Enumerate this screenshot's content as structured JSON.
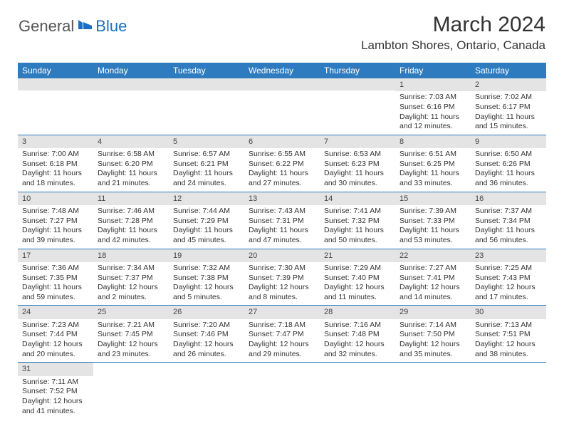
{
  "logo": {
    "text1": "General",
    "text2": "Blue"
  },
  "title": "March 2024",
  "location": "Lambton Shores, Ontario, Canada",
  "header_bg": "#2f7bbf",
  "header_fg": "#ffffff",
  "daynum_bg": "#e4e4e4",
  "days": [
    "Sunday",
    "Monday",
    "Tuesday",
    "Wednesday",
    "Thursday",
    "Friday",
    "Saturday"
  ],
  "weeks": [
    [
      {
        "empty": true
      },
      {
        "empty": true
      },
      {
        "empty": true
      },
      {
        "empty": true
      },
      {
        "empty": true
      },
      {
        "n": "1",
        "sr": "Sunrise: 7:03 AM",
        "ss": "Sunset: 6:16 PM",
        "d1": "Daylight: 11 hours",
        "d2": "and 12 minutes."
      },
      {
        "n": "2",
        "sr": "Sunrise: 7:02 AM",
        "ss": "Sunset: 6:17 PM",
        "d1": "Daylight: 11 hours",
        "d2": "and 15 minutes."
      }
    ],
    [
      {
        "n": "3",
        "sr": "Sunrise: 7:00 AM",
        "ss": "Sunset: 6:18 PM",
        "d1": "Daylight: 11 hours",
        "d2": "and 18 minutes."
      },
      {
        "n": "4",
        "sr": "Sunrise: 6:58 AM",
        "ss": "Sunset: 6:20 PM",
        "d1": "Daylight: 11 hours",
        "d2": "and 21 minutes."
      },
      {
        "n": "5",
        "sr": "Sunrise: 6:57 AM",
        "ss": "Sunset: 6:21 PM",
        "d1": "Daylight: 11 hours",
        "d2": "and 24 minutes."
      },
      {
        "n": "6",
        "sr": "Sunrise: 6:55 AM",
        "ss": "Sunset: 6:22 PM",
        "d1": "Daylight: 11 hours",
        "d2": "and 27 minutes."
      },
      {
        "n": "7",
        "sr": "Sunrise: 6:53 AM",
        "ss": "Sunset: 6:23 PM",
        "d1": "Daylight: 11 hours",
        "d2": "and 30 minutes."
      },
      {
        "n": "8",
        "sr": "Sunrise: 6:51 AM",
        "ss": "Sunset: 6:25 PM",
        "d1": "Daylight: 11 hours",
        "d2": "and 33 minutes."
      },
      {
        "n": "9",
        "sr": "Sunrise: 6:50 AM",
        "ss": "Sunset: 6:26 PM",
        "d1": "Daylight: 11 hours",
        "d2": "and 36 minutes."
      }
    ],
    [
      {
        "n": "10",
        "sr": "Sunrise: 7:48 AM",
        "ss": "Sunset: 7:27 PM",
        "d1": "Daylight: 11 hours",
        "d2": "and 39 minutes."
      },
      {
        "n": "11",
        "sr": "Sunrise: 7:46 AM",
        "ss": "Sunset: 7:28 PM",
        "d1": "Daylight: 11 hours",
        "d2": "and 42 minutes."
      },
      {
        "n": "12",
        "sr": "Sunrise: 7:44 AM",
        "ss": "Sunset: 7:29 PM",
        "d1": "Daylight: 11 hours",
        "d2": "and 45 minutes."
      },
      {
        "n": "13",
        "sr": "Sunrise: 7:43 AM",
        "ss": "Sunset: 7:31 PM",
        "d1": "Daylight: 11 hours",
        "d2": "and 47 minutes."
      },
      {
        "n": "14",
        "sr": "Sunrise: 7:41 AM",
        "ss": "Sunset: 7:32 PM",
        "d1": "Daylight: 11 hours",
        "d2": "and 50 minutes."
      },
      {
        "n": "15",
        "sr": "Sunrise: 7:39 AM",
        "ss": "Sunset: 7:33 PM",
        "d1": "Daylight: 11 hours",
        "d2": "and 53 minutes."
      },
      {
        "n": "16",
        "sr": "Sunrise: 7:37 AM",
        "ss": "Sunset: 7:34 PM",
        "d1": "Daylight: 11 hours",
        "d2": "and 56 minutes."
      }
    ],
    [
      {
        "n": "17",
        "sr": "Sunrise: 7:36 AM",
        "ss": "Sunset: 7:35 PM",
        "d1": "Daylight: 11 hours",
        "d2": "and 59 minutes."
      },
      {
        "n": "18",
        "sr": "Sunrise: 7:34 AM",
        "ss": "Sunset: 7:37 PM",
        "d1": "Daylight: 12 hours",
        "d2": "and 2 minutes."
      },
      {
        "n": "19",
        "sr": "Sunrise: 7:32 AM",
        "ss": "Sunset: 7:38 PM",
        "d1": "Daylight: 12 hours",
        "d2": "and 5 minutes."
      },
      {
        "n": "20",
        "sr": "Sunrise: 7:30 AM",
        "ss": "Sunset: 7:39 PM",
        "d1": "Daylight: 12 hours",
        "d2": "and 8 minutes."
      },
      {
        "n": "21",
        "sr": "Sunrise: 7:29 AM",
        "ss": "Sunset: 7:40 PM",
        "d1": "Daylight: 12 hours",
        "d2": "and 11 minutes."
      },
      {
        "n": "22",
        "sr": "Sunrise: 7:27 AM",
        "ss": "Sunset: 7:41 PM",
        "d1": "Daylight: 12 hours",
        "d2": "and 14 minutes."
      },
      {
        "n": "23",
        "sr": "Sunrise: 7:25 AM",
        "ss": "Sunset: 7:43 PM",
        "d1": "Daylight: 12 hours",
        "d2": "and 17 minutes."
      }
    ],
    [
      {
        "n": "24",
        "sr": "Sunrise: 7:23 AM",
        "ss": "Sunset: 7:44 PM",
        "d1": "Daylight: 12 hours",
        "d2": "and 20 minutes."
      },
      {
        "n": "25",
        "sr": "Sunrise: 7:21 AM",
        "ss": "Sunset: 7:45 PM",
        "d1": "Daylight: 12 hours",
        "d2": "and 23 minutes."
      },
      {
        "n": "26",
        "sr": "Sunrise: 7:20 AM",
        "ss": "Sunset: 7:46 PM",
        "d1": "Daylight: 12 hours",
        "d2": "and 26 minutes."
      },
      {
        "n": "27",
        "sr": "Sunrise: 7:18 AM",
        "ss": "Sunset: 7:47 PM",
        "d1": "Daylight: 12 hours",
        "d2": "and 29 minutes."
      },
      {
        "n": "28",
        "sr": "Sunrise: 7:16 AM",
        "ss": "Sunset: 7:48 PM",
        "d1": "Daylight: 12 hours",
        "d2": "and 32 minutes."
      },
      {
        "n": "29",
        "sr": "Sunrise: 7:14 AM",
        "ss": "Sunset: 7:50 PM",
        "d1": "Daylight: 12 hours",
        "d2": "and 35 minutes."
      },
      {
        "n": "30",
        "sr": "Sunrise: 7:13 AM",
        "ss": "Sunset: 7:51 PM",
        "d1": "Daylight: 12 hours",
        "d2": "and 38 minutes."
      }
    ],
    [
      {
        "n": "31",
        "sr": "Sunrise: 7:11 AM",
        "ss": "Sunset: 7:52 PM",
        "d1": "Daylight: 12 hours",
        "d2": "and 41 minutes."
      },
      {
        "blank": true
      },
      {
        "blank": true
      },
      {
        "blank": true
      },
      {
        "blank": true
      },
      {
        "blank": true
      },
      {
        "blank": true
      }
    ]
  ]
}
